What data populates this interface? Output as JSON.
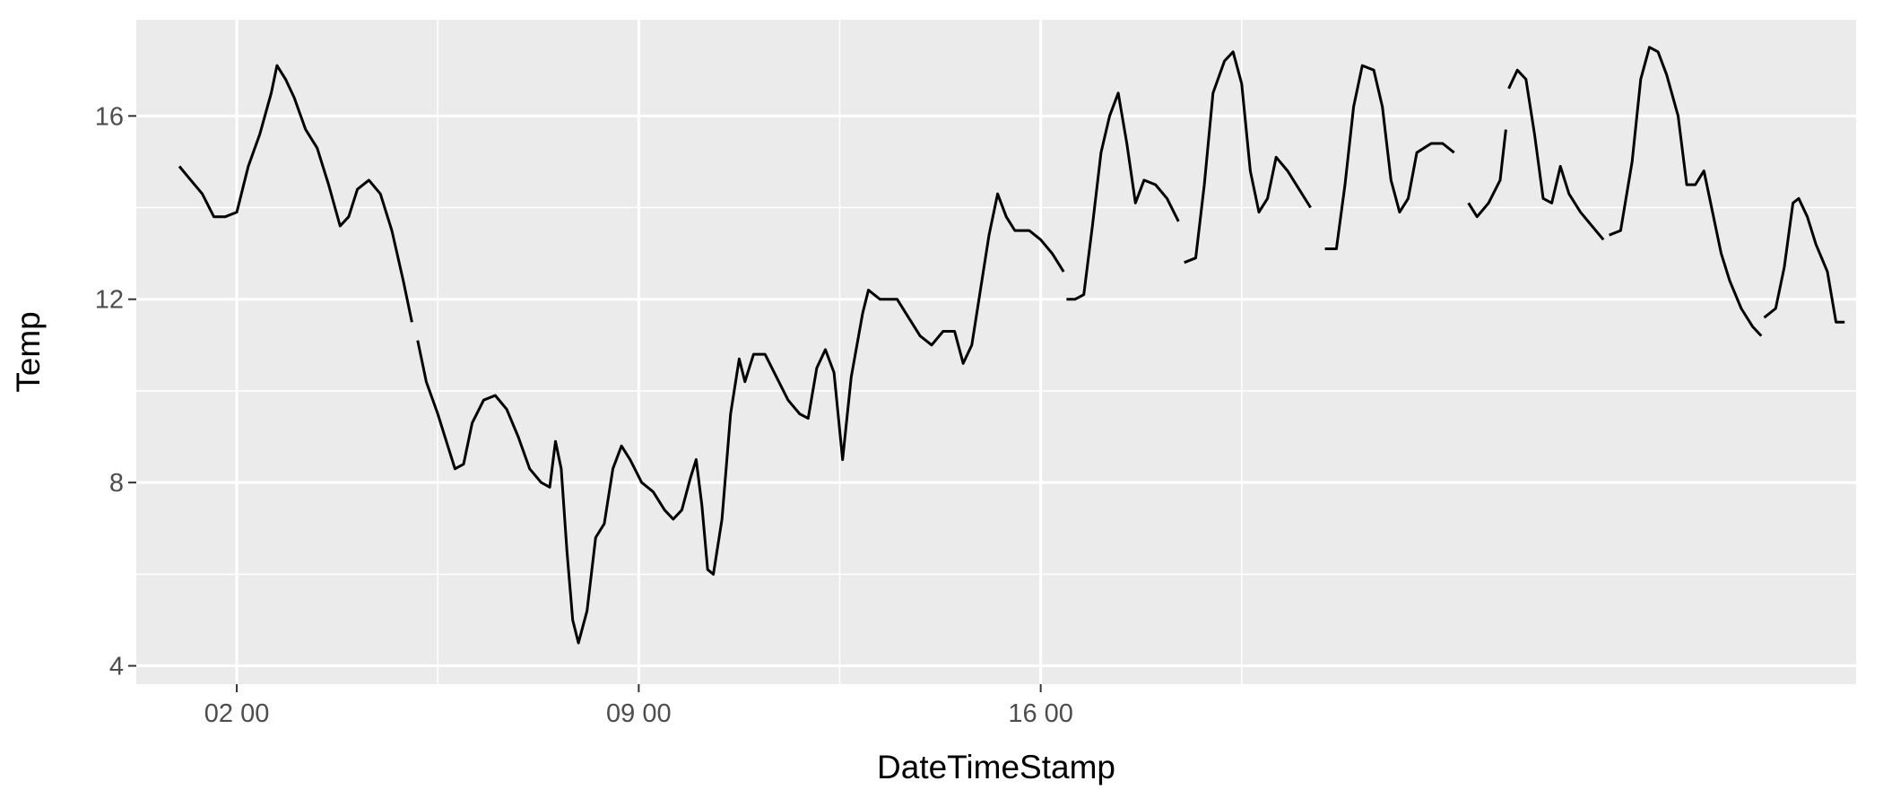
{
  "chart_data": {
    "type": "line",
    "title": "",
    "xlabel": "DateTimeStamp",
    "ylabel": "Temp",
    "xlim": [
      -1.75,
      28.2
    ],
    "ylim": [
      3.6,
      18.1
    ],
    "x_ticks": [
      {
        "value": 0,
        "label": "02 00"
      },
      {
        "value": 7,
        "label": "09 00"
      },
      {
        "value": 14,
        "label": "16 00"
      }
    ],
    "x_minor": [
      3.5,
      10.5,
      17.5
    ],
    "y_ticks": [
      {
        "value": 4,
        "label": "4"
      },
      {
        "value": 8,
        "label": "8"
      },
      {
        "value": 12,
        "label": "12"
      },
      {
        "value": 16,
        "label": "16"
      }
    ],
    "y_minor": [
      6,
      10,
      14
    ],
    "grid": true,
    "colors": {
      "panel": "#EBEBEB",
      "grid": "#FFFFFF",
      "line": "#000000",
      "tick_text": "#4D4D4D",
      "tick_mark": "#333333"
    },
    "series": [
      {
        "segments": [
          [
            [
              -1,
              14.9
            ],
            [
              -0.8,
              14.6
            ],
            [
              -0.6,
              14.3
            ],
            [
              -0.4,
              13.8
            ],
            [
              -0.2,
              13.8
            ],
            [
              0,
              13.9
            ],
            [
              0.2,
              14.9
            ],
            [
              0.4,
              15.6
            ],
            [
              0.6,
              16.5
            ],
            [
              0.7,
              17.1
            ],
            [
              0.85,
              16.8
            ],
            [
              1,
              16.4
            ],
            [
              1.2,
              15.7
            ],
            [
              1.4,
              15.3
            ],
            [
              1.6,
              14.5
            ],
            [
              1.8,
              13.6
            ],
            [
              1.95,
              13.8
            ],
            [
              2.1,
              14.4
            ],
            [
              2.3,
              14.6
            ],
            [
              2.5,
              14.3
            ],
            [
              2.7,
              13.5
            ],
            [
              2.9,
              12.4
            ],
            [
              3.05,
              11.5
            ]
          ],
          [
            [
              3.15,
              11.1
            ],
            [
              3.3,
              10.2
            ],
            [
              3.5,
              9.5
            ],
            [
              3.7,
              8.7
            ],
            [
              3.8,
              8.3
            ],
            [
              3.95,
              8.4
            ],
            [
              4.1,
              9.3
            ],
            [
              4.3,
              9.8
            ],
            [
              4.5,
              9.9
            ],
            [
              4.7,
              9.6
            ],
            [
              4.9,
              9.0
            ],
            [
              5.1,
              8.3
            ],
            [
              5.3,
              8.0
            ],
            [
              5.45,
              7.9
            ],
            [
              5.55,
              8.9
            ],
            [
              5.65,
              8.3
            ],
            [
              5.75,
              6.5
            ],
            [
              5.85,
              5.0
            ],
            [
              5.95,
              4.5
            ],
            [
              6.1,
              5.2
            ],
            [
              6.25,
              6.8
            ],
            [
              6.4,
              7.1
            ],
            [
              6.55,
              8.3
            ],
            [
              6.7,
              8.8
            ],
            [
              6.85,
              8.5
            ],
            [
              7.05,
              8.0
            ],
            [
              7.25,
              7.8
            ],
            [
              7.45,
              7.4
            ],
            [
              7.6,
              7.2
            ],
            [
              7.75,
              7.4
            ],
            [
              7.9,
              8.1
            ],
            [
              8.0,
              8.5
            ],
            [
              8.1,
              7.5
            ],
            [
              8.2,
              6.1
            ],
            [
              8.3,
              6.0
            ],
            [
              8.45,
              7.2
            ],
            [
              8.6,
              9.5
            ],
            [
              8.75,
              10.7
            ],
            [
              8.85,
              10.2
            ],
            [
              9.0,
              10.8
            ],
            [
              9.2,
              10.8
            ],
            [
              9.4,
              10.3
            ],
            [
              9.6,
              9.8
            ],
            [
              9.8,
              9.5
            ],
            [
              9.95,
              9.4
            ],
            [
              10.1,
              10.5
            ],
            [
              10.25,
              10.9
            ],
            [
              10.4,
              10.4
            ],
            [
              10.55,
              8.5
            ],
            [
              10.7,
              10.3
            ],
            [
              10.9,
              11.7
            ],
            [
              11.0,
              12.2
            ],
            [
              11.2,
              12.0
            ],
            [
              11.35,
              12.0
            ],
            [
              11.5,
              12.0
            ],
            [
              11.7,
              11.6
            ],
            [
              11.9,
              11.2
            ],
            [
              12.1,
              11.0
            ],
            [
              12.3,
              11.3
            ],
            [
              12.5,
              11.3
            ],
            [
              12.65,
              10.6
            ],
            [
              12.8,
              11.0
            ],
            [
              12.95,
              12.2
            ],
            [
              13.1,
              13.4
            ],
            [
              13.25,
              14.3
            ],
            [
              13.4,
              13.8
            ],
            [
              13.55,
              13.5
            ],
            [
              13.8,
              13.5
            ],
            [
              14.0,
              13.3
            ],
            [
              14.2,
              13.0
            ],
            [
              14.4,
              12.6
            ]
          ],
          [
            [
              14.45,
              12.0
            ],
            [
              14.6,
              12.0
            ],
            [
              14.75,
              12.1
            ],
            [
              14.9,
              13.6
            ],
            [
              15.05,
              15.2
            ],
            [
              15.2,
              16.0
            ],
            [
              15.35,
              16.5
            ],
            [
              15.5,
              15.4
            ],
            [
              15.65,
              14.1
            ],
            [
              15.8,
              14.6
            ],
            [
              16.0,
              14.5
            ],
            [
              16.2,
              14.2
            ],
            [
              16.4,
              13.7
            ]
          ],
          [
            [
              16.5,
              12.8
            ],
            [
              16.7,
              12.9
            ],
            [
              16.85,
              14.5
            ],
            [
              17.0,
              16.5
            ],
            [
              17.2,
              17.2
            ],
            [
              17.35,
              17.4
            ],
            [
              17.5,
              16.7
            ],
            [
              17.65,
              14.8
            ],
            [
              17.8,
              13.9
            ],
            [
              17.95,
              14.2
            ],
            [
              18.1,
              15.1
            ],
            [
              18.3,
              14.8
            ],
            [
              18.5,
              14.4
            ],
            [
              18.7,
              14.0
            ]
          ],
          [
            [
              18.95,
              13.1
            ],
            [
              19.15,
              13.1
            ],
            [
              19.3,
              14.5
            ],
            [
              19.45,
              16.2
            ],
            [
              19.6,
              17.1
            ],
            [
              19.8,
              17.0
            ],
            [
              19.95,
              16.2
            ],
            [
              20.1,
              14.6
            ],
            [
              20.25,
              13.9
            ],
            [
              20.4,
              14.2
            ],
            [
              20.55,
              15.2
            ],
            [
              20.8,
              15.4
            ],
            [
              21.0,
              15.4
            ],
            [
              21.2,
              15.2
            ]
          ],
          [
            [
              21.45,
              14.1
            ],
            [
              21.6,
              13.8
            ],
            [
              21.8,
              14.1
            ],
            [
              22.0,
              14.6
            ],
            [
              22.1,
              15.7
            ]
          ],
          [
            [
              22.15,
              16.6
            ],
            [
              22.3,
              17.0
            ],
            [
              22.45,
              16.8
            ],
            [
              22.6,
              15.6
            ],
            [
              22.75,
              14.2
            ],
            [
              22.9,
              14.1
            ],
            [
              23.05,
              14.9
            ],
            [
              23.2,
              14.3
            ],
            [
              23.4,
              13.9
            ],
            [
              23.6,
              13.6
            ],
            [
              23.8,
              13.3
            ]
          ],
          [
            [
              23.9,
              13.4
            ],
            [
              24.1,
              13.5
            ],
            [
              24.3,
              15.0
            ],
            [
              24.45,
              16.8
            ],
            [
              24.6,
              17.5
            ],
            [
              24.75,
              17.4
            ],
            [
              24.9,
              16.9
            ],
            [
              25.1,
              16.0
            ],
            [
              25.25,
              14.5
            ],
            [
              25.4,
              14.5
            ],
            [
              25.55,
              14.8
            ],
            [
              25.7,
              13.9
            ],
            [
              25.85,
              13.0
            ],
            [
              26.0,
              12.4
            ],
            [
              26.2,
              11.8
            ],
            [
              26.4,
              11.4
            ],
            [
              26.55,
              11.2
            ]
          ],
          [
            [
              26.6,
              11.6
            ],
            [
              26.8,
              11.8
            ],
            [
              26.95,
              12.7
            ],
            [
              27.1,
              14.1
            ],
            [
              27.2,
              14.2
            ],
            [
              27.35,
              13.8
            ],
            [
              27.5,
              13.2
            ],
            [
              27.7,
              12.6
            ],
            [
              27.85,
              11.5
            ],
            [
              28.0,
              11.5
            ]
          ]
        ]
      }
    ]
  }
}
